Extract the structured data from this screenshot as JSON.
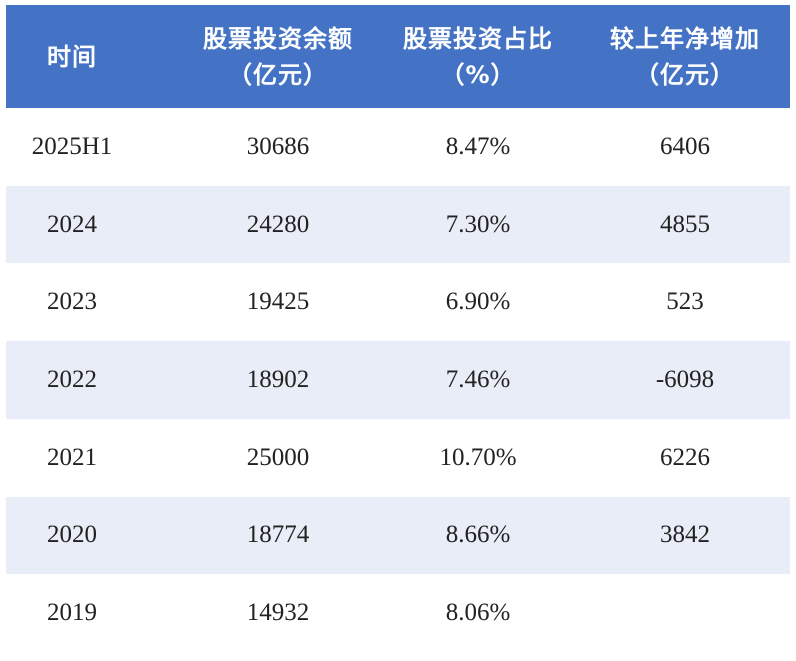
{
  "table": {
    "header": [
      [
        "时间"
      ],
      [
        "股票投资余额",
        "（亿元）"
      ],
      [
        "股票投资占比",
        "（%）"
      ],
      [
        "较上年净增加",
        "（亿元）"
      ]
    ],
    "rows": [
      [
        "2025H1",
        "30686",
        "8.47%",
        "6406"
      ],
      [
        "2024",
        "24280",
        "7.30%",
        "4855"
      ],
      [
        "2023",
        "19425",
        "6.90%",
        "523"
      ],
      [
        "2022",
        "18902",
        "7.46%",
        "-6098"
      ],
      [
        "2021",
        "25000",
        "10.70%",
        "6226"
      ],
      [
        "2020",
        "18774",
        "8.66%",
        "3842"
      ],
      [
        "2019",
        "14932",
        "8.06%",
        null
      ]
    ]
  }
}
